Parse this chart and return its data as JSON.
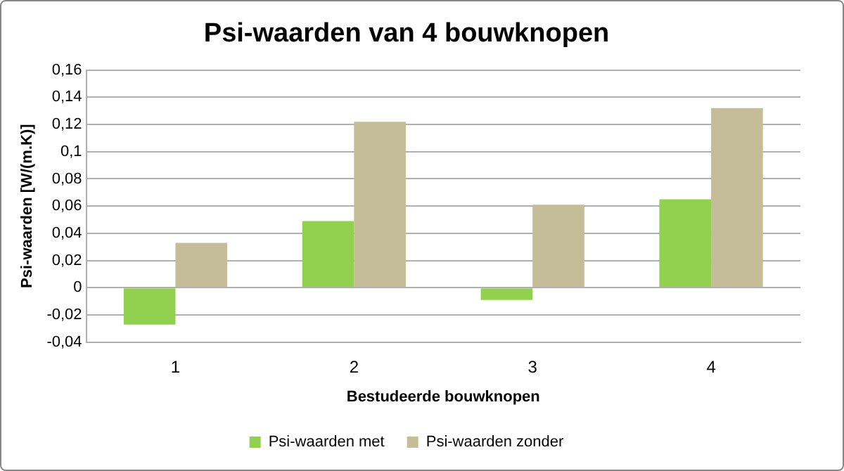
{
  "chart_data": {
    "type": "bar",
    "title": "Psi-waarden van 4 bouwknopen",
    "xlabel": "Bestudeerde bouwknopen",
    "ylabel": "Psi-waarden [W/(m.K)]",
    "categories": [
      "1",
      "2",
      "3",
      "4"
    ],
    "series": [
      {
        "name": "Psi-waarden met",
        "color": "#92d050",
        "values": [
          -0.027,
          0.049,
          -0.009,
          0.065
        ]
      },
      {
        "name": "Psi-waarden zonder",
        "color": "#c4bd97",
        "values": [
          0.033,
          0.122,
          0.061,
          0.132
        ]
      }
    ],
    "ylim": [
      -0.04,
      0.16
    ],
    "yticks": [
      {
        "value": -0.04,
        "label": "-0,04"
      },
      {
        "value": -0.02,
        "label": "-0,02"
      },
      0,
      {
        "value": 0.02,
        "label": "0,02"
      },
      {
        "value": 0.04,
        "label": "0,04"
      },
      {
        "value": 0.06,
        "label": "0,06"
      },
      {
        "value": 0.08,
        "label": "0,08"
      },
      {
        "value": 0.1,
        "label": "0,1"
      },
      {
        "value": 0.12,
        "label": "0,12"
      },
      {
        "value": 0.14,
        "label": "0,14"
      },
      {
        "value": 0.16,
        "label": "0,16"
      }
    ],
    "grid": "y",
    "legend": "bottom"
  }
}
